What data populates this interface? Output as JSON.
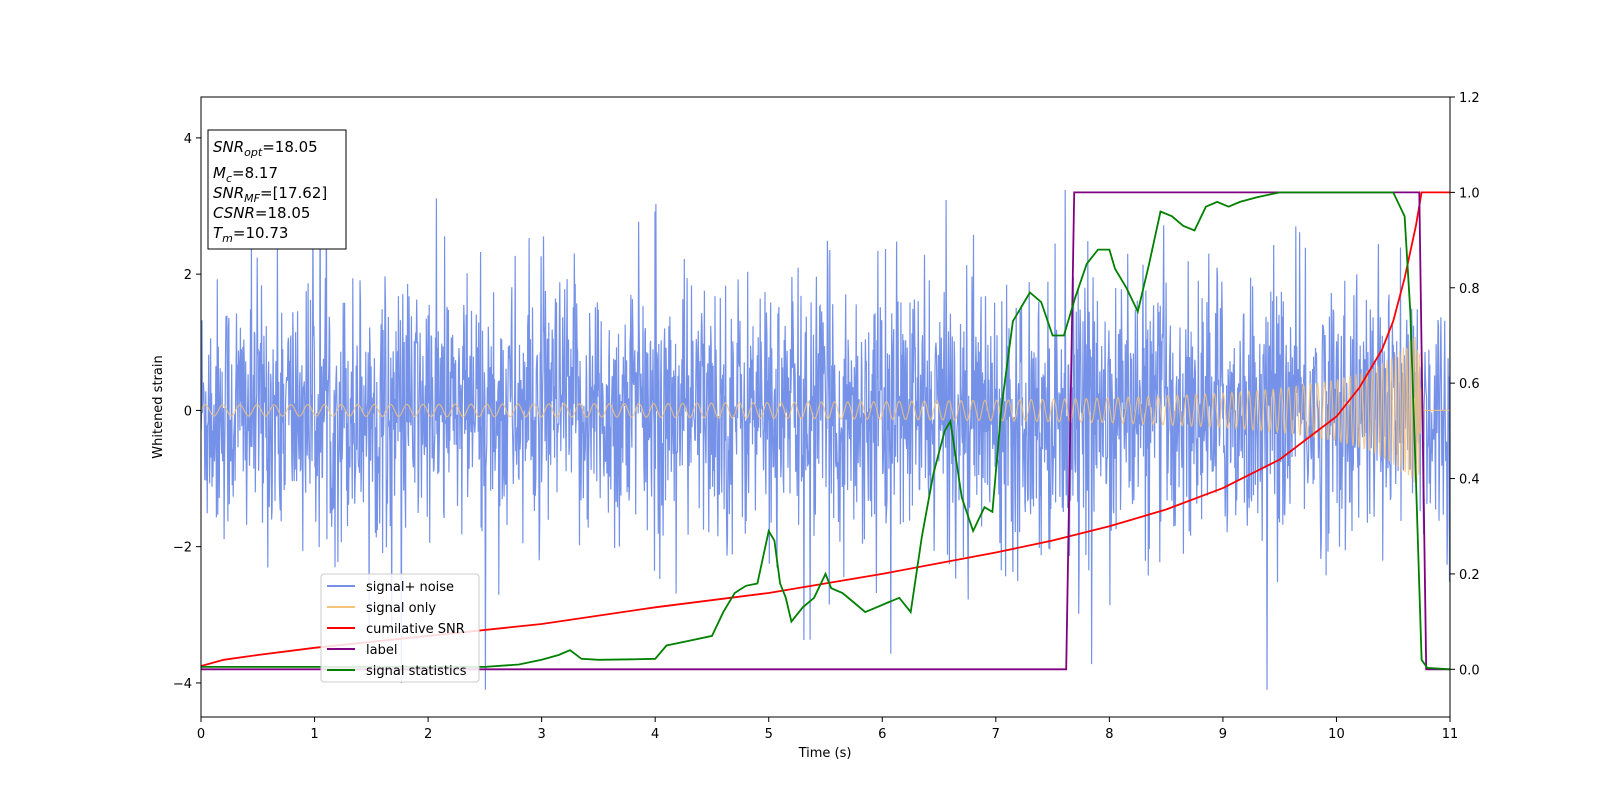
{
  "chart_data": {
    "type": "line",
    "xlabel": "Time (s)",
    "ylabel": "Whitened strain",
    "xlim": [
      0,
      11
    ],
    "ylim": [
      -4.5,
      4.6
    ],
    "y2lim": [
      -0.1,
      1.2
    ],
    "xticks": [
      "0",
      "1",
      "2",
      "3",
      "4",
      "5",
      "6",
      "7",
      "8",
      "9",
      "10",
      "11"
    ],
    "yticks": [
      "-4",
      "-2",
      "0",
      "2",
      "4"
    ],
    "y2ticks": [
      "0.0",
      "0.2",
      "0.4",
      "0.6",
      "0.8",
      "1.0",
      "1.2"
    ],
    "legend_position": "lower-left",
    "series": [
      {
        "name": "signal+ noise",
        "axis": "left",
        "color": "#7592e8",
        "note_values": "noise band approx -1.5..1.5 with spikes to about +/-4"
      },
      {
        "name": "signal only",
        "axis": "left",
        "color": "#f5c27a",
        "amplitude": {
          "x": [
            0,
            4,
            6,
            7,
            8,
            9,
            9.5,
            10,
            10.3,
            10.5,
            10.6,
            10.7,
            10.73,
            10.75,
            11
          ],
          "y": [
            0.08,
            0.1,
            0.13,
            0.15,
            0.18,
            0.25,
            0.32,
            0.45,
            0.6,
            0.8,
            0.95,
            1.1,
            1.0,
            0,
            0
          ]
        }
      },
      {
        "name": "cumilative SNR",
        "axis": "right",
        "color": "#ff0000",
        "x": [
          0,
          0.2,
          0.5,
          1,
          2,
          3,
          4,
          5,
          6,
          7,
          7.5,
          8,
          8.5,
          9,
          9.5,
          10,
          10.2,
          10.4,
          10.5,
          10.6,
          10.7,
          10.75,
          11
        ],
        "y": [
          0.007,
          0.02,
          0.03,
          0.045,
          0.07,
          0.095,
          0.13,
          0.16,
          0.2,
          0.245,
          0.27,
          0.3,
          0.335,
          0.38,
          0.44,
          0.53,
          0.59,
          0.67,
          0.73,
          0.82,
          0.93,
          1.0,
          1.0
        ]
      },
      {
        "name": "label",
        "axis": "right",
        "color": "#800080",
        "x": [
          0,
          7.62,
          7.69,
          10.73,
          10.79,
          11
        ],
        "y": [
          0,
          0,
          1,
          1,
          0,
          0
        ]
      },
      {
        "name": "signal statistics",
        "axis": "right",
        "color": "#008000",
        "x": [
          0,
          2.5,
          2.8,
          3,
          3.15,
          3.25,
          3.35,
          3.5,
          3.8,
          4,
          4.1,
          4.2,
          4.3,
          4.5,
          4.6,
          4.7,
          4.8,
          4.9,
          5,
          5.05,
          5.1,
          5.15,
          5.2,
          5.3,
          5.4,
          5.5,
          5.55,
          5.65,
          5.75,
          5.85,
          5.95,
          6.05,
          6.15,
          6.25,
          6.35,
          6.45,
          6.55,
          6.6,
          6.7,
          6.8,
          6.9,
          6.97,
          7.05,
          7.15,
          7.3,
          7.4,
          7.5,
          7.6,
          7.7,
          7.8,
          7.9,
          8,
          8.05,
          8.15,
          8.25,
          8.35,
          8.45,
          8.55,
          8.65,
          8.75,
          8.85,
          8.95,
          9.05,
          9.15,
          9.3,
          9.5,
          10,
          10.5,
          10.6,
          10.65,
          10.7,
          10.75,
          10.8,
          11
        ],
        "y": [
          0.005,
          0.005,
          0.01,
          0.02,
          0.03,
          0.04,
          0.022,
          0.02,
          0.021,
          0.022,
          0.05,
          0.055,
          0.06,
          0.07,
          0.12,
          0.16,
          0.175,
          0.18,
          0.29,
          0.27,
          0.18,
          0.15,
          0.1,
          0.13,
          0.15,
          0.2,
          0.17,
          0.16,
          0.14,
          0.12,
          0.13,
          0.14,
          0.15,
          0.12,
          0.28,
          0.41,
          0.5,
          0.52,
          0.36,
          0.29,
          0.34,
          0.33,
          0.55,
          0.73,
          0.79,
          0.77,
          0.7,
          0.7,
          0.78,
          0.85,
          0.88,
          0.88,
          0.84,
          0.8,
          0.75,
          0.85,
          0.96,
          0.95,
          0.93,
          0.92,
          0.97,
          0.98,
          0.97,
          0.98,
          0.99,
          1.0,
          1.0,
          1.0,
          0.95,
          0.75,
          0.4,
          0.02,
          0.003,
          0.0
        ]
      }
    ]
  },
  "info_box": {
    "snr_opt_base": "SNR",
    "snr_opt_sub": "opt",
    "snr_opt_value": "=18.05",
    "mc_base": "M",
    "mc_sub": "c",
    "mc_value": "=8.17",
    "snr_mf_base": "SNR",
    "snr_mf_sub": "MF",
    "snr_mf_value": "=[17.62]",
    "csnr_base": "CSNR",
    "csnr_value": "=18.05",
    "tm_base": "T",
    "tm_sub": "m",
    "tm_value": "=10.73"
  }
}
